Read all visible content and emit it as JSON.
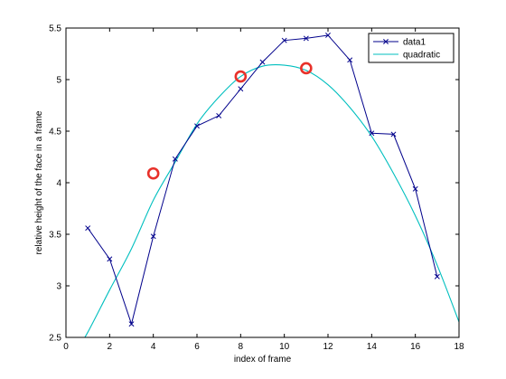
{
  "chart_data": {
    "type": "line",
    "xlabel": "index of frame",
    "ylabel": "relative height of the face in a frame",
    "xlim": [
      0,
      18
    ],
    "ylim": [
      2.5,
      5.5
    ],
    "xticks": [
      0,
      2,
      4,
      6,
      8,
      10,
      12,
      14,
      16,
      18
    ],
    "yticks": [
      2.5,
      3,
      3.5,
      4,
      4.5,
      5,
      5.5
    ],
    "xtick_labels": [
      "0",
      "2",
      "4",
      "6",
      "8",
      "10",
      "12",
      "14",
      "16",
      "18"
    ],
    "ytick_labels": [
      "2.5",
      "3",
      "3.5",
      "4",
      "4.5",
      "5",
      "5.5"
    ],
    "grid": false,
    "legend_position": "top-right",
    "series": [
      {
        "name": "data1",
        "color": "#00008b",
        "marker": "x",
        "x": [
          1,
          2,
          3,
          4,
          5,
          6,
          7,
          8,
          9,
          10,
          11,
          12,
          13,
          14,
          15,
          16,
          17
        ],
        "y": [
          3.56,
          3.26,
          2.63,
          3.48,
          4.23,
          4.55,
          4.65,
          4.91,
          5.17,
          5.38,
          5.4,
          5.43,
          5.19,
          4.48,
          4.47,
          3.94,
          3.09
        ]
      },
      {
        "name": "quadratic",
        "color": "#00bfbf",
        "x": [
          0.5,
          1,
          2,
          3,
          4,
          5,
          6,
          7,
          8,
          9,
          10,
          11,
          12,
          13,
          14,
          15,
          16,
          17,
          18
        ],
        "y": [
          2.38,
          2.55,
          2.96,
          3.36,
          3.83,
          4.2,
          4.57,
          4.83,
          5.03,
          5.13,
          5.14,
          5.09,
          4.95,
          4.73,
          4.45,
          4.09,
          3.68,
          3.2,
          2.65
        ]
      }
    ],
    "highlight_circles": {
      "color": "#e8312a",
      "points": [
        {
          "x": 4,
          "y": 4.09
        },
        {
          "x": 8,
          "y": 5.03
        },
        {
          "x": 11,
          "y": 5.11
        }
      ]
    }
  }
}
